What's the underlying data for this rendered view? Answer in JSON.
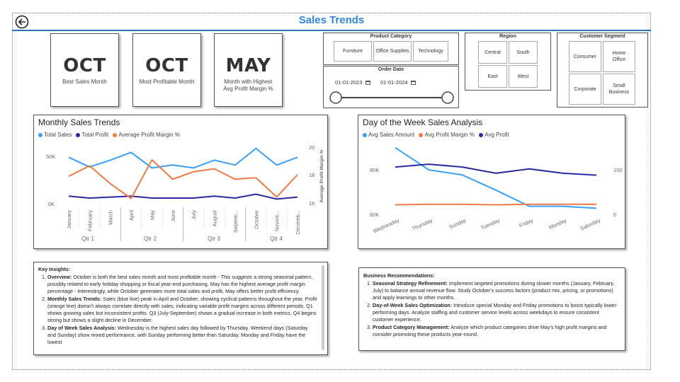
{
  "page": {
    "title": "Sales Trends"
  },
  "cards": [
    {
      "value": "OCT",
      "label": "Best Sales Month"
    },
    {
      "value": "OCT",
      "label": "Most Profitable Month"
    },
    {
      "value": "MAY",
      "label": "Month with Highest Avg Profit Margin %"
    }
  ],
  "slicers": {
    "product_category": {
      "title": "Product Category",
      "options": [
        "Furniture",
        "Office Supplies",
        "Technology"
      ]
    },
    "order_date": {
      "title": "Order Date",
      "start": "01-01-2023",
      "end": "01-01-2024"
    },
    "region": {
      "title": "Region",
      "options": [
        "Central",
        "South",
        "East",
        "West"
      ]
    },
    "customer_segment": {
      "title": "Customer Segment",
      "options": [
        "Consumer",
        "Home Office",
        "Corporate",
        "Small Business"
      ]
    }
  },
  "monthly_chart": {
    "title": "Monthly Sales Trends",
    "legend": [
      "Total Sales",
      "Total Profit",
      "Average Profit Margin %"
    ],
    "y_ticks": [
      "50K",
      "0K"
    ],
    "y2_ticks": [
      "20",
      "18",
      "16"
    ],
    "y2_label": "Average Profit Margin %",
    "quarters": [
      "Qtr 1",
      "Qtr 2",
      "Qtr 3",
      "Qtr 4"
    ]
  },
  "dow_chart": {
    "title": "Day of the Week Sales Analysis",
    "legend": [
      "Avg Sales Amount",
      "Avg Profit Margin %",
      "Avg Profit"
    ],
    "y_ticks": [
      "80K",
      "60K"
    ],
    "y2_ticks": [
      "100",
      "0"
    ]
  },
  "chart_data": [
    {
      "type": "line",
      "title": "Monthly Sales Trends",
      "categories": [
        "January",
        "February",
        "March",
        "April",
        "May",
        "June",
        "July",
        "August",
        "Septem...",
        "October",
        "Novem...",
        "Decemb..."
      ],
      "groups": [
        "Qtr 1",
        "Qtr 2",
        "Qtr 3",
        "Qtr 4"
      ],
      "series": [
        {
          "name": "Total Sales",
          "axis": "left",
          "color": "#3a9ff5",
          "values": [
            48000,
            38000,
            45000,
            53000,
            37000,
            40000,
            37000,
            45000,
            40000,
            57000,
            40000,
            48000
          ]
        },
        {
          "name": "Total Profit",
          "axis": "left",
          "color": "#2a2aa0",
          "values": [
            8000,
            6000,
            7000,
            8000,
            6000,
            6000,
            6000,
            8000,
            6000,
            10000,
            5000,
            7000
          ]
        },
        {
          "name": "Average Profit Margin %",
          "axis": "right",
          "color": "#ee7a45",
          "values": [
            17.9,
            18.6,
            17.4,
            16.4,
            19.0,
            17.7,
            18.2,
            18.4,
            17.7,
            17.8,
            16.5,
            18.0
          ]
        }
      ],
      "y_ticks": [
        "50K",
        "0K"
      ],
      "ylim": [
        -2000,
        62000
      ],
      "y2lim": [
        15.9,
        20.1
      ],
      "y2label": "Average Profit Margin %",
      "legend_position": "top-left"
    },
    {
      "type": "line",
      "title": "Day of the Week Sales Analysis",
      "categories": [
        "Wednesday",
        "Thursday",
        "Sunday",
        "Tuesday",
        "Friday",
        "Monday",
        "Saturday"
      ],
      "series": [
        {
          "name": "Avg Sales Amount",
          "axis": "left",
          "color": "#3a9ff5",
          "values": [
            91000,
            80000,
            77500,
            70000,
            62000,
            62000,
            61000
          ]
        },
        {
          "name": "Avg Profit Margin %",
          "axis": "right",
          "color": "#ee7a45",
          "values": [
            17,
            18,
            18,
            17,
            18,
            18,
            18
          ]
        },
        {
          "name": "Avg Profit",
          "axis": "right",
          "color": "#2a2aa0",
          "values": [
            96,
            102,
            96,
            83,
            92,
            83,
            79
          ]
        }
      ],
      "y_ticks": [
        "80K",
        "60K"
      ],
      "ylim": [
        58000,
        93000
      ],
      "y2lim": [
        -3,
        145
      ],
      "legend_position": "top-left"
    }
  ],
  "insights": {
    "heading": "Key Insights:",
    "items": [
      {
        "label": "Overview:",
        "text": " October is both the best sales month and most profitable month - This suggests a strong seasonal pattern, possibly related to early holiday shopping or fiscal year-end purchasing. May has the highest average profit margin percentage - Interestingly, while October generates more total sales and profit, May offers better profit efficiency."
      },
      {
        "label": "Monthly Sales Trends:",
        "text": " Sales (blue line) peak in April and October, showing cyclical patterns throughout the year. Profit (orange line) doesn't always correlate directly with sales, indicating variable profit margins across different periods. Q1 shows growing sales but inconsistent profits. Q3 (July-September) shows a gradual increase in both metrics. Q4 begins strong but shows a slight decline in December."
      },
      {
        "label": "Day of Week Sales Analysis:",
        "text": " Wednesday is the highest sales day followed by Thursday. Weekend days (Saturday and Sunday) show mixed performance, with Sunday performing better than Saturday. Monday and Friday have the lowest"
      }
    ]
  },
  "recommendations": {
    "heading": "Business Recommendations:",
    "items": [
      {
        "label": "Seasonal Strategy Refinement:",
        "text": " Implement targeted promotions during slower months (January, February, July) to balance annual revenue flow. Study October's success factors (product mix, pricing, or promotions) and apply learnings to other months."
      },
      {
        "label": "Day-of-Week Sales Optimization:",
        "text": " Introduce special Monday and Friday promotions to boost typically lower-performing days. Analyze staffing and customer service levels across weekdays to ensure consistent customer experience."
      },
      {
        "label": "Product Category Management:",
        "text": " Analyze which product categories drive May's high profit margins and consider promoting these products year-round."
      }
    ]
  },
  "colors": {
    "accent": "#2e86de",
    "sales": "#3a9ff5",
    "profit": "#2a2aa0",
    "margin": "#ee7a45"
  }
}
